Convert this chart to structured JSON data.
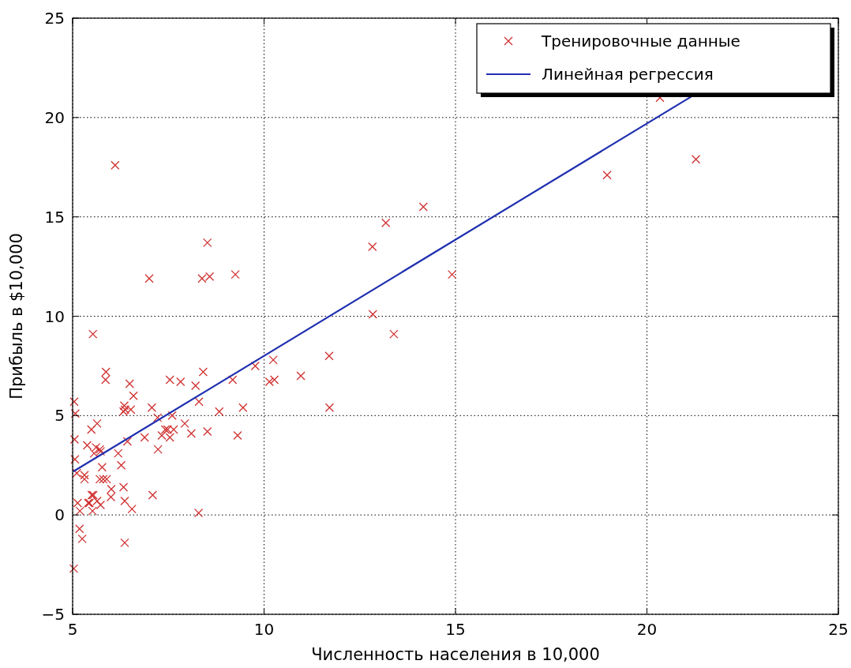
{
  "chart_data": {
    "type": "scatter",
    "xlabel": "Численность населения в 10,000",
    "ylabel": "Прибыль в $10,000",
    "xlim": [
      5,
      25
    ],
    "ylim": [
      -5,
      25
    ],
    "xticks": [
      5,
      10,
      15,
      20,
      25
    ],
    "yticks": [
      {
        "value": -5,
        "label": "−5"
      },
      0,
      5,
      10,
      15,
      20,
      25
    ],
    "grid": true,
    "legend": "top right",
    "series": [
      {
        "name": "Тренировочные данные",
        "marker": "cross",
        "color": "#d03030",
        "x": [
          6.11,
          5.53,
          8.52,
          7.0,
          5.86,
          8.38,
          7.48,
          8.58,
          6.49,
          5.05,
          5.71,
          14.16,
          5.73,
          8.41,
          5.64,
          5.38,
          6.37,
          5.13,
          6.43,
          7.07,
          6.19,
          5.49,
          6.33,
          5.56,
          12.83,
          10.96,
          13.18,
          5.25,
          6.59,
          9.25,
          5.89,
          8.21,
          7.93,
          8.1,
          5.61,
          12.84,
          6.35,
          5.41,
          6.88,
          11.71,
          5.77,
          7.82,
          7.09,
          5.07,
          5.8,
          11.7,
          5.54,
          7.54,
          5.31,
          7.42,
          7.6,
          6.33,
          6.36,
          6.27,
          5.64,
          9.31,
          9.45,
          8.83,
          5.18,
          21.28,
          14.91,
          18.96,
          7.22,
          8.3,
          10.24,
          5.5,
          20.34,
          10.14,
          7.33,
          6.01,
          7.23,
          5.03,
          6.55,
          7.54,
          5.04,
          10.27,
          5.11,
          5.73,
          5.19,
          6.36,
          9.77,
          6.52,
          8.52,
          9.18,
          6.0,
          5.52,
          5.06,
          5.71,
          7.64,
          5.87,
          5.31,
          8.29,
          13.39,
          5.44
        ],
        "values": [
          17.6,
          9.1,
          13.7,
          11.9,
          6.8,
          11.9,
          4.3,
          12.0,
          6.6,
          3.8,
          3.3,
          15.5,
          3.2,
          7.2,
          0.7,
          3.5,
          5.3,
          0.6,
          3.7,
          5.4,
          3.1,
          4.3,
          5.2,
          3.1,
          13.5,
          7.0,
          14.7,
          -1.2,
          6.0,
          12.1,
          1.8,
          6.5,
          4.6,
          4.1,
          3.4,
          10.1,
          5.5,
          0.6,
          3.9,
          5.4,
          2.4,
          6.7,
          1.0,
          5.1,
          1.8,
          8.0,
          1.0,
          6.8,
          1.8,
          4.3,
          5.0,
          1.4,
          -1.4,
          2.5,
          4.6,
          4.0,
          5.4,
          5.2,
          -0.7,
          17.9,
          12.1,
          17.1,
          4.9,
          5.7,
          7.8,
          1.0,
          21.0,
          6.7,
          4.0,
          1.3,
          3.3,
          -2.7,
          0.3,
          3.9,
          5.7,
          6.8,
          2.1,
          0.5,
          0.2,
          0.7,
          7.5,
          5.3,
          4.2,
          6.8,
          0.9,
          0.2,
          2.8,
          1.8,
          4.3,
          7.2,
          2.0,
          0.1,
          9.1,
          0.6
        ]
      },
      {
        "name": "Линейная регрессия",
        "type": "line",
        "line_style": "solid",
        "color": "#1f2fb0",
        "x": [
          5.03,
          21.2
        ],
        "values": [
          2.2,
          21.1
        ]
      }
    ]
  }
}
